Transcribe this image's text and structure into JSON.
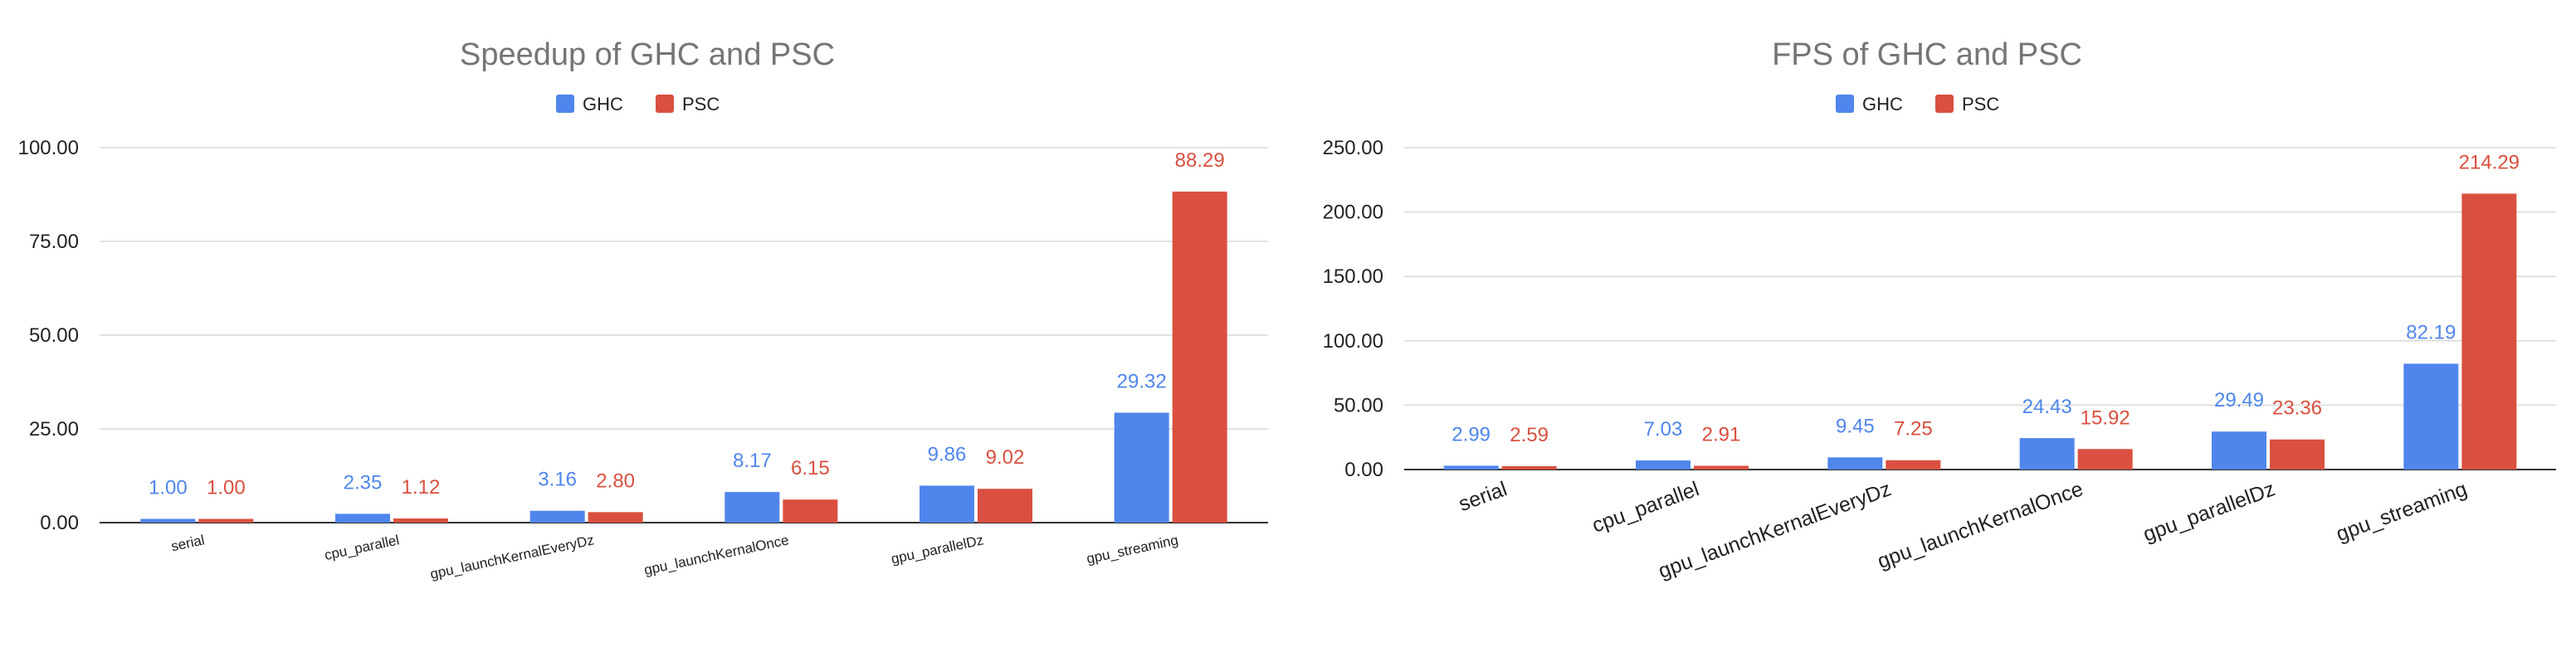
{
  "colors": {
    "ghc": "#4f86ec",
    "psc": "#d95040",
    "grid": "#d9d9d9",
    "axis": "#333333"
  },
  "chart_data": [
    {
      "type": "bar",
      "title": "Speedup of  GHC and PSC",
      "legend_position": "top",
      "grid": true,
      "categories": [
        "serial",
        "cpu_parallel",
        "gpu_launchKernalEveryDz",
        "gpu_launchKernalOnce",
        "gpu_parallelDz",
        "gpu_streaming"
      ],
      "series": [
        {
          "name": "GHC",
          "values": [
            1.0,
            2.35,
            3.16,
            8.17,
            9.86,
            29.32
          ],
          "labels": [
            "1.00",
            "2.35",
            "3.16",
            "8.17",
            "9.86",
            "29.32"
          ]
        },
        {
          "name": "PSC",
          "values": [
            1.0,
            1.12,
            2.8,
            6.15,
            9.02,
            88.29
          ],
          "labels": [
            "1.00",
            "1.12",
            "2.80",
            "6.15",
            "9.02",
            "88.29"
          ]
        }
      ],
      "ylim": [
        0,
        100
      ],
      "yticks": [
        "0.00",
        "25.00",
        "50.00",
        "75.00",
        "100.00"
      ],
      "xlabel": "",
      "ylabel": ""
    },
    {
      "type": "bar",
      "title": "FPS of GHC and PSC",
      "legend_position": "top",
      "grid": true,
      "categories": [
        "serial",
        "cpu_parallel",
        "gpu_launchKernalEveryDz",
        "gpu_launchKernalOnce",
        "gpu_parallelDz",
        "gpu_streaming"
      ],
      "series": [
        {
          "name": "GHC",
          "values": [
            2.99,
            7.03,
            9.45,
            24.43,
            29.49,
            82.19
          ],
          "labels": [
            "2.99",
            "7.03",
            "9.45",
            "24.43",
            "29.49",
            "82.19"
          ]
        },
        {
          "name": "PSC",
          "values": [
            2.59,
            2.91,
            7.25,
            15.92,
            23.36,
            214.29
          ],
          "labels": [
            "2.59",
            "2.91",
            "7.25",
            "15.92",
            "23.36",
            "214.29"
          ]
        }
      ],
      "ylim": [
        0,
        250
      ],
      "yticks": [
        "0.00",
        "50.00",
        "100.00",
        "150.00",
        "200.00",
        "250.00"
      ],
      "xlabel": "",
      "ylabel": ""
    }
  ]
}
